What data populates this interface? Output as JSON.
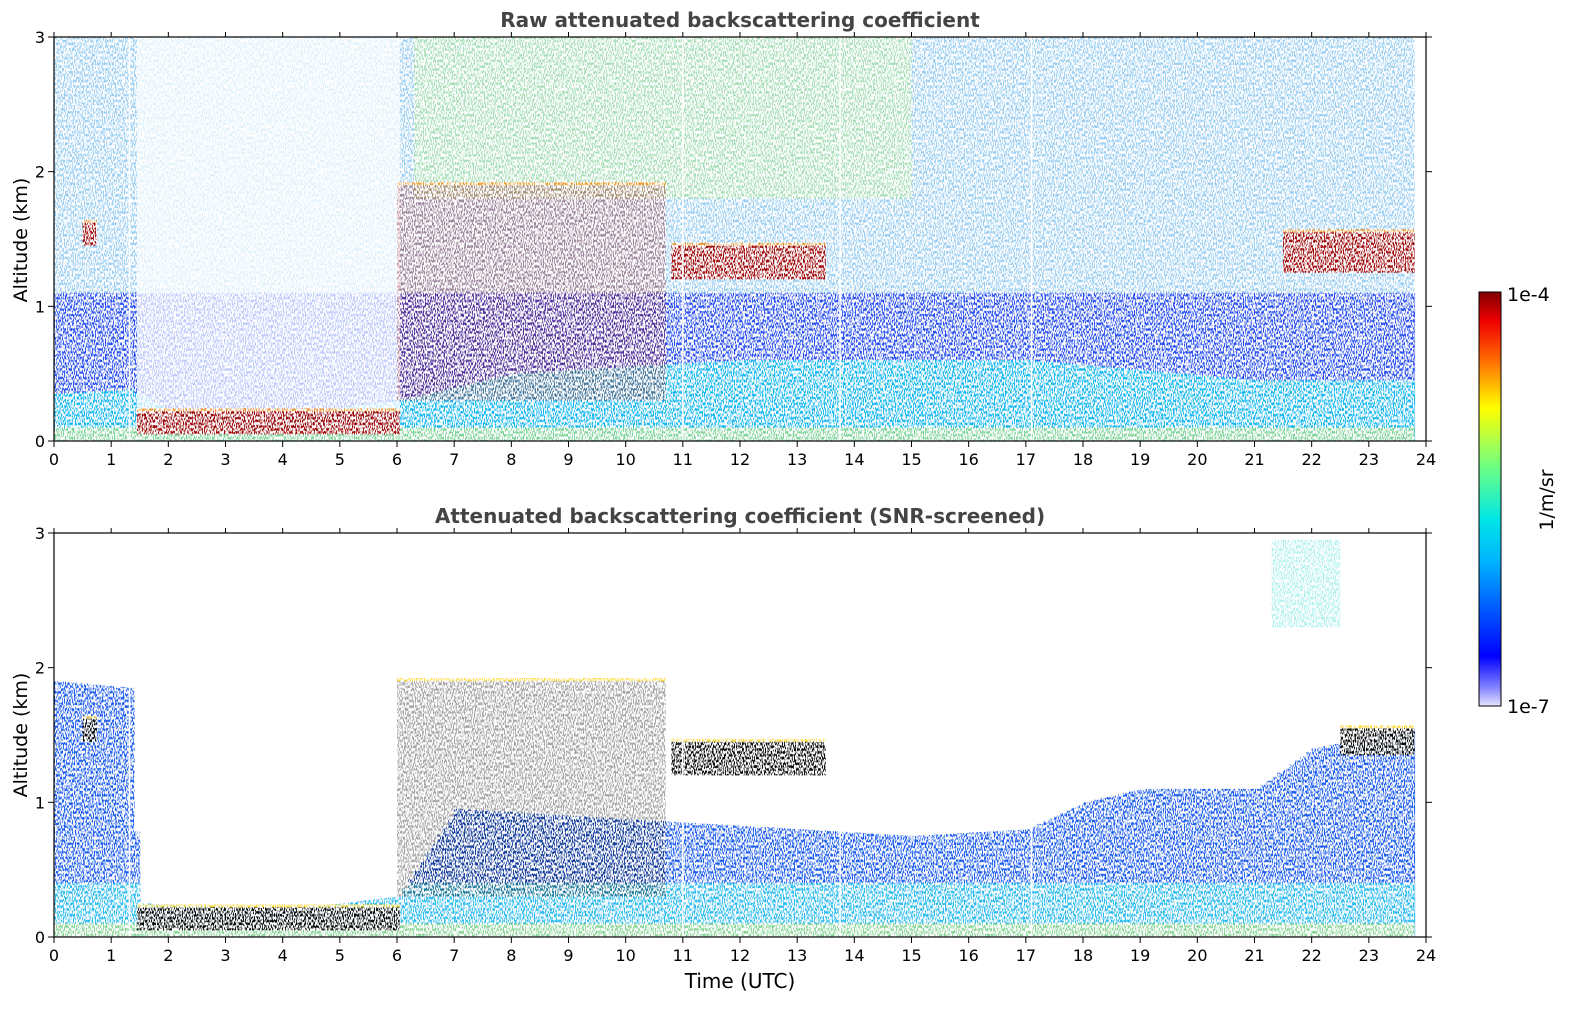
{
  "figure": {
    "colorbar": {
      "label": "1/m/sr",
      "max_label": "1e-4",
      "min_label": "1e-7",
      "scale": "log",
      "range": [
        1e-07,
        0.0001
      ],
      "colormap": "jet"
    }
  },
  "chart_data": [
    {
      "type": "heatmap",
      "title": "Raw attenuated backscattering coefficient",
      "xlabel": "",
      "ylabel": "Altitude (km)",
      "xlim": [
        0,
        24
      ],
      "ylim": [
        0,
        3
      ],
      "x_ticks": [
        0,
        1,
        2,
        3,
        4,
        5,
        6,
        7,
        8,
        9,
        10,
        11,
        12,
        13,
        14,
        15,
        16,
        17,
        18,
        19,
        20,
        21,
        22,
        23,
        24
      ],
      "x_tick_labels": [
        "0",
        "1",
        "2",
        "3",
        "4",
        "5",
        "6",
        "7",
        "8",
        "9",
        "10",
        "11",
        "12",
        "13",
        "14",
        "15",
        "16",
        "17",
        "18",
        "19",
        "20",
        "21",
        "22",
        "23",
        "24"
      ],
      "y_ticks": [
        0,
        1,
        2,
        3
      ],
      "y_tick_labels": [
        "0",
        "1",
        "2",
        "3"
      ],
      "data_extent_x": [
        0,
        23.8
      ],
      "gap_times": [
        1.32,
        11.0,
        13.75,
        17.1
      ],
      "features": {
        "boundary_layer_top_km": [
          [
            0,
            0.35
          ],
          [
            1.3,
            0.38
          ],
          [
            2,
            0.22
          ],
          [
            4,
            0.2
          ],
          [
            6,
            0.3
          ],
          [
            8,
            0.5
          ],
          [
            12,
            0.6
          ],
          [
            17,
            0.6
          ],
          [
            21,
            0.45
          ],
          [
            23.8,
            0.45
          ]
        ],
        "cloud_layers": [
          {
            "t_start": 0.5,
            "t_end": 0.75,
            "base_km": 1.45,
            "top_km": 1.62
          },
          {
            "t_start": 1.45,
            "t_end": 6.05,
            "base_km": 0.05,
            "top_km": 0.22
          },
          {
            "t_start": 6.0,
            "t_end": 10.7,
            "base_km": 0.3,
            "top_km": 1.9
          },
          {
            "t_start": 10.8,
            "t_end": 13.5,
            "base_km": 1.2,
            "top_km": 1.45
          },
          {
            "t_start": 21.5,
            "t_end": 23.8,
            "base_km": 1.25,
            "top_km": 1.55
          }
        ]
      }
    },
    {
      "type": "heatmap",
      "title": "Attenuated backscattering coefficient (SNR-screened)",
      "xlabel": "Time (UTC)",
      "ylabel": "Altitude (km)",
      "xlim": [
        0,
        24
      ],
      "ylim": [
        0,
        3
      ],
      "x_ticks": [
        0,
        1,
        2,
        3,
        4,
        5,
        6,
        7,
        8,
        9,
        10,
        11,
        12,
        13,
        14,
        15,
        16,
        17,
        18,
        19,
        20,
        21,
        22,
        23,
        24
      ],
      "x_tick_labels": [
        "0",
        "1",
        "2",
        "3",
        "4",
        "5",
        "6",
        "7",
        "8",
        "9",
        "10",
        "11",
        "12",
        "13",
        "14",
        "15",
        "16",
        "17",
        "18",
        "19",
        "20",
        "21",
        "22",
        "23",
        "24"
      ],
      "y_ticks": [
        0,
        1,
        2,
        3
      ],
      "y_tick_labels": [
        "0",
        "1",
        "2",
        "3"
      ],
      "data_extent_x": [
        0,
        23.8
      ],
      "gap_times": [
        1.32,
        11.0,
        13.75,
        17.1
      ],
      "features": {
        "screened_top_km": [
          [
            0,
            1.9
          ],
          [
            1.3,
            1.85
          ],
          [
            1.45,
            0.25
          ],
          [
            4,
            0.2
          ],
          [
            6,
            0.3
          ],
          [
            7,
            0.95
          ],
          [
            9,
            0.9
          ],
          [
            11,
            0.85
          ],
          [
            13,
            0.8
          ],
          [
            15,
            0.75
          ],
          [
            17,
            0.8
          ],
          [
            18,
            1.0
          ],
          [
            19,
            1.1
          ],
          [
            21,
            1.1
          ],
          [
            22,
            1.4
          ],
          [
            23.8,
            1.55
          ]
        ],
        "cloud_layers": [
          {
            "t_start": 0.5,
            "t_end": 0.75,
            "base_km": 1.45,
            "top_km": 1.62
          },
          {
            "t_start": 1.45,
            "t_end": 6.05,
            "base_km": 0.05,
            "top_km": 0.22
          },
          {
            "t_start": 6.0,
            "t_end": 10.7,
            "base_km": 0.3,
            "top_km": 1.9
          },
          {
            "t_start": 10.8,
            "t_end": 13.5,
            "base_km": 1.2,
            "top_km": 1.45
          },
          {
            "t_start": 22.5,
            "t_end": 23.8,
            "base_km": 1.35,
            "top_km": 1.55
          }
        ],
        "upper_cirrus": {
          "t_start": 21.3,
          "t_end": 22.5,
          "base_km": 2.3,
          "top_km": 2.95
        }
      }
    }
  ]
}
